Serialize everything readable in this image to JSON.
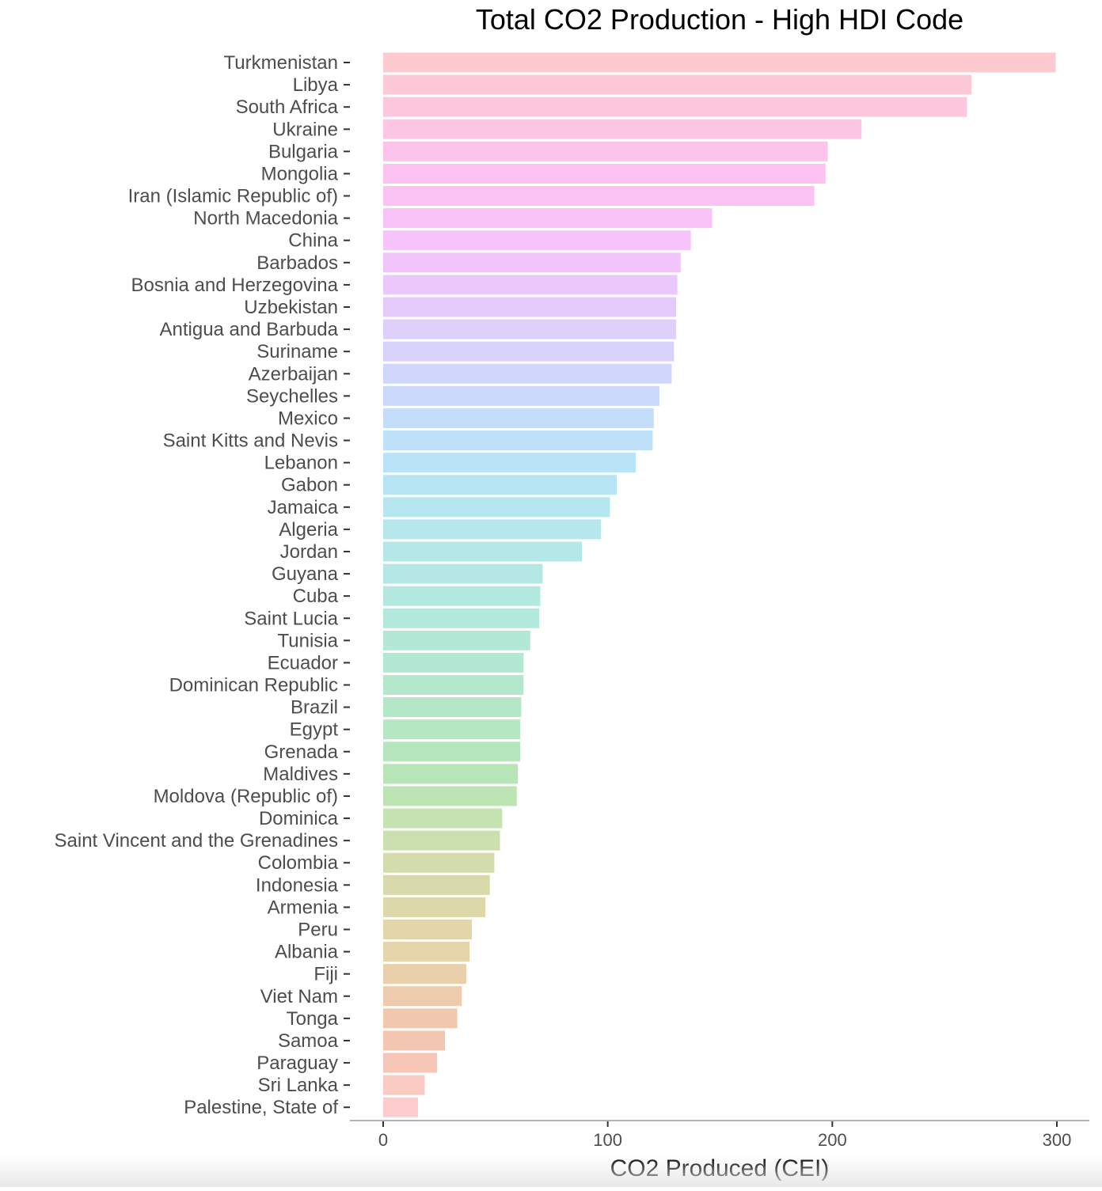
{
  "chart_data": {
    "type": "bar",
    "orientation": "horizontal",
    "title": "Total CO2 Production - High HDI Code",
    "xlabel": "CO2 Produced (CEI)",
    "ylabel": "",
    "xlim": [
      0,
      300
    ],
    "xticks": [
      0,
      100,
      200,
      300
    ],
    "grid": false,
    "legend": "none",
    "categories": [
      "Turkmenistan",
      "Libya",
      "South Africa",
      "Ukraine",
      "Bulgaria",
      "Mongolia",
      "Iran (Islamic Republic of)",
      "North Macedonia",
      "China",
      "Barbados",
      "Bosnia and Herzegovina",
      "Uzbekistan",
      "Antigua and Barbuda",
      "Suriname",
      "Azerbaijan",
      "Seychelles",
      "Mexico",
      "Saint Kitts and Nevis",
      "Lebanon",
      "Gabon",
      "Jamaica",
      "Algeria",
      "Jordan",
      "Guyana",
      "Cuba",
      "Saint Lucia",
      "Tunisia",
      "Ecuador",
      "Dominican Republic",
      "Brazil",
      "Egypt",
      "Grenada",
      "Maldives",
      "Moldova (Republic of)",
      "Dominica",
      "Saint Vincent and the Grenadines",
      "Colombia",
      "Indonesia",
      "Armenia",
      "Peru",
      "Albania",
      "Fiji",
      "Viet Nam",
      "Tonga",
      "Samoa",
      "Paraguay",
      "Sri Lanka",
      "Palestine, State of"
    ],
    "values": [
      299.5,
      262,
      260,
      213,
      198,
      197,
      192,
      146.5,
      137,
      132.5,
      131,
      130.5,
      130.5,
      129.5,
      128.5,
      123,
      120.5,
      120,
      112.5,
      104,
      101,
      97,
      88.5,
      71,
      70,
      69.5,
      65.5,
      62.5,
      62.5,
      61.5,
      61,
      61,
      60,
      59.5,
      53,
      52,
      49.5,
      47.5,
      45.5,
      39.5,
      38.5,
      37,
      35,
      33,
      27.5,
      24,
      18.5,
      15.5
    ],
    "bar_colors": [
      "#fdcad2",
      "#fdc9d7",
      "#fdc7de",
      "#fdc6e5",
      "#fdc4eb",
      "#fcc3f0",
      "#fbc2f4",
      "#f9c3f8",
      "#f6c3fa",
      "#f1c5fb",
      "#ebc8fb",
      "#e5cbfb",
      "#decffb",
      "#d8d3fb",
      "#d1d6fb",
      "#cbdafb",
      "#c3ddfb",
      "#bfe1fa",
      "#bbe3f7",
      "#b8e5f4",
      "#b6e6f0",
      "#b5e7ec",
      "#b4e8e8",
      "#b3e8e4",
      "#b3e8e0",
      "#b3e8dc",
      "#b3e8d7",
      "#b3e8d2",
      "#b4e7cc",
      "#b4e7c7",
      "#b5e7c2",
      "#b6e6bd",
      "#b7e5b8",
      "#bde4b3",
      "#c5e3b0",
      "#ccdfae",
      "#d2dcac",
      "#d8daab",
      "#ddd8aa",
      "#e2d6aa",
      "#e6d4aa",
      "#eacfab",
      "#edcbac",
      "#f0c8ae",
      "#f3c6b1",
      "#f7c6b7",
      "#facbc2",
      "#fdcdcd"
    ]
  }
}
